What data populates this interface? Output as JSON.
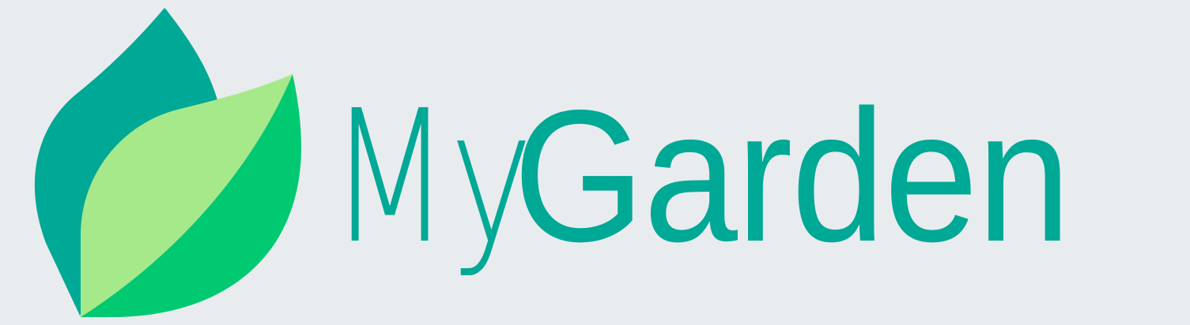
{
  "logo": {
    "brand_light": "My",
    "brand_bold": "Garden",
    "icon": "leaf-icon"
  },
  "colors": {
    "background": "#e8ecee",
    "text": "#00a896",
    "leaf_back": "#00a896",
    "leaf_front_light": "#a6e98a",
    "leaf_front_dark": "#00c972"
  }
}
